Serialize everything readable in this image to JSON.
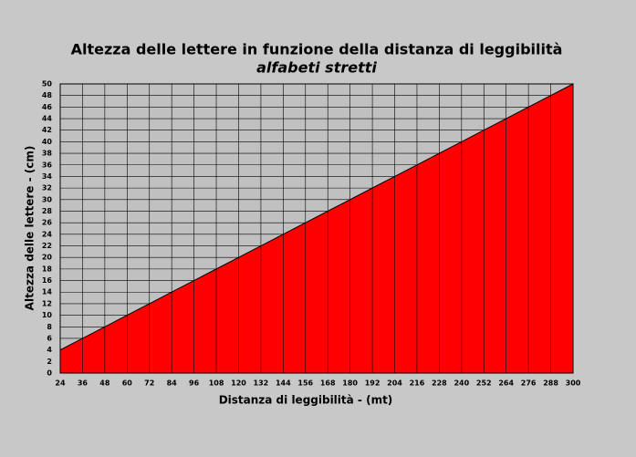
{
  "chart_data": {
    "type": "area",
    "title": "Altezza delle lettere in funzione della distanza di leggibilità",
    "subtitle": "alfabeti stretti",
    "x_label": "Distanza di leggibilità - (mt)",
    "y_label": "Altezza delle lettere - (cm)",
    "x": [
      24,
      36,
      48,
      60,
      72,
      84,
      96,
      108,
      120,
      132,
      144,
      156,
      168,
      180,
      192,
      204,
      216,
      228,
      240,
      252,
      264,
      276,
      288,
      300
    ],
    "values": [
      4,
      6,
      8,
      10,
      12,
      14,
      16,
      18,
      20,
      22,
      24,
      26,
      28,
      30,
      32,
      34,
      36,
      38,
      40,
      42,
      44,
      46,
      48,
      50
    ],
    "color": "#ff0000",
    "xlim": [
      24,
      300
    ],
    "xticks": [
      24,
      36,
      48,
      60,
      72,
      84,
      96,
      108,
      120,
      132,
      144,
      156,
      168,
      180,
      192,
      204,
      216,
      228,
      240,
      252,
      264,
      276,
      288,
      300
    ],
    "ylim": [
      0,
      50
    ],
    "yticks": [
      0,
      2,
      4,
      6,
      8,
      10,
      12,
      14,
      16,
      18,
      20,
      22,
      24,
      26,
      28,
      30,
      32,
      34,
      36,
      38,
      40,
      42,
      44,
      46,
      48,
      50
    ],
    "grid": true
  }
}
